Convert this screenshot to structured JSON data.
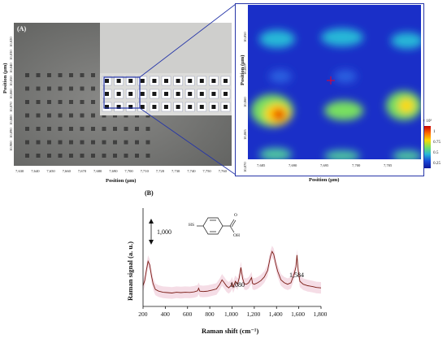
{
  "panel_a": {
    "label": "(A)",
    "x_axis_title": "Position (μm)",
    "y_axis_title": "Position (μm)",
    "x_ticks": [
      "7,630",
      "7,640",
      "7,650",
      "7,660",
      "7,670",
      "7,680",
      "7,690",
      "7,700",
      "7,710",
      "7,720",
      "7,730",
      "7,740",
      "7,750",
      "7,760"
    ],
    "y_ticks": [
      "10,820",
      "10,830",
      "10,840",
      "10,850",
      "10,860",
      "10,870",
      "10,880",
      "10,890",
      "10,900"
    ]
  },
  "raman_map": {
    "x_axis_title": "Position (μm)",
    "y_axis_title": "Position (μm)",
    "x_ticks": [
      "7,685",
      "7,690",
      "7,695",
      "7,700",
      "7,705"
    ],
    "y_ticks": [
      "10,850",
      "10,855",
      "10,860",
      "10,865",
      "10,870"
    ],
    "colorbar": {
      "exponent": "× 10³",
      "ticks": [
        "1",
        "0.75",
        "0.5",
        "0.25"
      ]
    },
    "colors": {
      "low": "#10189a",
      "mid": "#28b8d8",
      "high": "#c80000",
      "marker": "#e8002a"
    }
  },
  "panel_b": {
    "label": "(B)",
    "scale_bar_value": "1,000",
    "molecule_sh": "HS",
    "molecule_o": "O",
    "molecule_oh": "OH",
    "peak_labels": [
      "1,080",
      "1,584"
    ]
  },
  "chart_data": {
    "type": "line",
    "xlabel": "Raman shift (cm⁻¹)",
    "ylabel": "Raman signal (a. u.)",
    "xlim": [
      200,
      1800
    ],
    "x_ticks": [
      "200",
      "400",
      "600",
      "800",
      "1,000",
      "1,200",
      "1,400",
      "1,600",
      "1,800"
    ],
    "x_tick_values": [
      200,
      400,
      600,
      800,
      1000,
      1200,
      1400,
      1600,
      1800
    ],
    "line_color": "#7a1c14",
    "band_color": "#f3d5e0",
    "series": [
      {
        "x": [
          200,
          215,
          230,
          245,
          260,
          275,
          290,
          310,
          340,
          380,
          420,
          460,
          500,
          540,
          580,
          620,
          660,
          690,
          700,
          710,
          740,
          780,
          820,
          860,
          890,
          910,
          930,
          950,
          970,
          990,
          1000,
          1010,
          1030,
          1050,
          1065,
          1080,
          1095,
          1110,
          1130,
          1150,
          1175,
          1185,
          1200,
          1230,
          1260,
          1290,
          1320,
          1345,
          1360,
          1375,
          1390,
          1410,
          1440,
          1470,
          1500,
          1530,
          1560,
          1575,
          1584,
          1595,
          1610,
          1640,
          1680,
          1720,
          1760,
          1800
        ],
        "values": [
          480,
          620,
          900,
          1150,
          1050,
          760,
          540,
          380,
          330,
          300,
          290,
          280,
          300,
          290,
          300,
          295,
          310,
          340,
          410,
          330,
          320,
          330,
          360,
          390,
          520,
          640,
          560,
          470,
          420,
          480,
          560,
          440,
          600,
          520,
          700,
          980,
          680,
          530,
          520,
          560,
          700,
          540,
          520,
          560,
          620,
          720,
          900,
          1280,
          1420,
          1340,
          1120,
          880,
          640,
          560,
          520,
          560,
          820,
          1000,
          1320,
          900,
          600,
          520,
          480,
          460,
          430,
          420
        ]
      }
    ]
  }
}
